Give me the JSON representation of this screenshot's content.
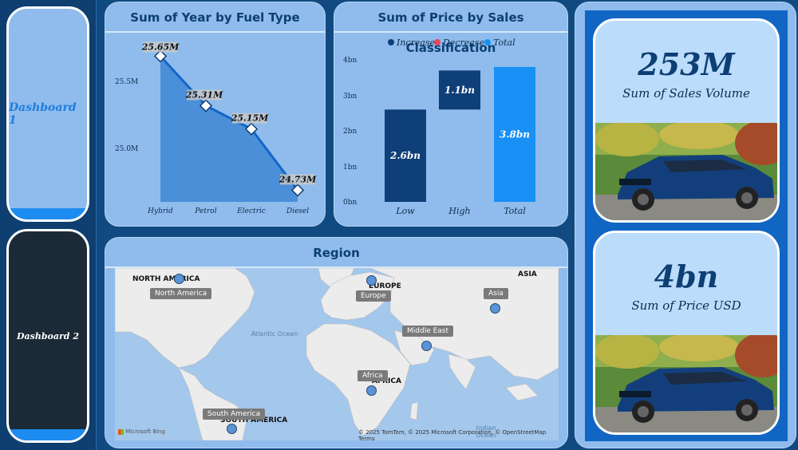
{
  "nav": {
    "dashboard1_label": "Dashboard 1",
    "dashboard2_label": "Dashboard 2"
  },
  "fuel_chart": {
    "title": "Sum of Year by Fuel Type",
    "y_ticks": [
      "25.5M",
      "25.0M"
    ],
    "data_labels": [
      "25.65M",
      "25.31M",
      "25.15M",
      "24.73M"
    ]
  },
  "price_chart": {
    "title": "Sum of Price by Sales Classification",
    "legend": [
      {
        "label": "Increase",
        "color": "#0f3f78"
      },
      {
        "label": "Decrease",
        "color": "#e8475b"
      },
      {
        "label": "Total",
        "color": "#1890f5"
      }
    ],
    "y_ticks": [
      "4bn",
      "3bn",
      "2bn",
      "1bn",
      "0bn"
    ],
    "data_labels": [
      "2.6bn",
      "1.1bn",
      "3.8bn"
    ]
  },
  "chart_data": [
    {
      "type": "area",
      "title": "Sum of Year by Fuel Type",
      "categories": [
        "Hybrid",
        "Petrol",
        "Electric",
        "Diesel"
      ],
      "values": [
        25650000,
        25310000,
        25150000,
        24730000
      ],
      "ylim": [
        24650000,
        25800000
      ],
      "y_ticks": [
        25000000,
        25500000
      ],
      "grid": false
    },
    {
      "type": "bar",
      "title": "Sum of Price by Sales Classification",
      "categories": [
        "Low",
        "High",
        "Total"
      ],
      "waterfall_start": [
        0,
        2.6,
        0
      ],
      "values": [
        2.6,
        1.1,
        3.8
      ],
      "kinds": [
        "Increase",
        "Increase",
        "Total"
      ],
      "ylim": [
        0,
        4
      ],
      "legend_position": "top"
    }
  ],
  "region_map": {
    "title": "Region",
    "labels": [
      "North America",
      "Europe",
      "Asia",
      "Middle East",
      "Africa",
      "South America"
    ],
    "region_texts": [
      "NORTH AMERICA",
      "EUROPE",
      "ASIA",
      "AFRICA",
      "SOUTH AMERICA"
    ],
    "ocean_texts": [
      "Atlantic Ocean",
      "Indian Ocean"
    ],
    "brand": "Microsoft Bing",
    "attribution": "© 2025 TomTom, © 2025 Microsoft Corporation, © OpenStreetMap  Terms"
  },
  "kpis": {
    "sales_volume_value": "253M",
    "sales_volume_label": "Sum of Sales Volume",
    "price_value": "4bn",
    "price_label": "Sum of Price USD"
  },
  "colors": {
    "background": "#114a80",
    "panel": "#8fbcec",
    "accent": "#1890f5",
    "dark_bar": "#0f3f78"
  }
}
